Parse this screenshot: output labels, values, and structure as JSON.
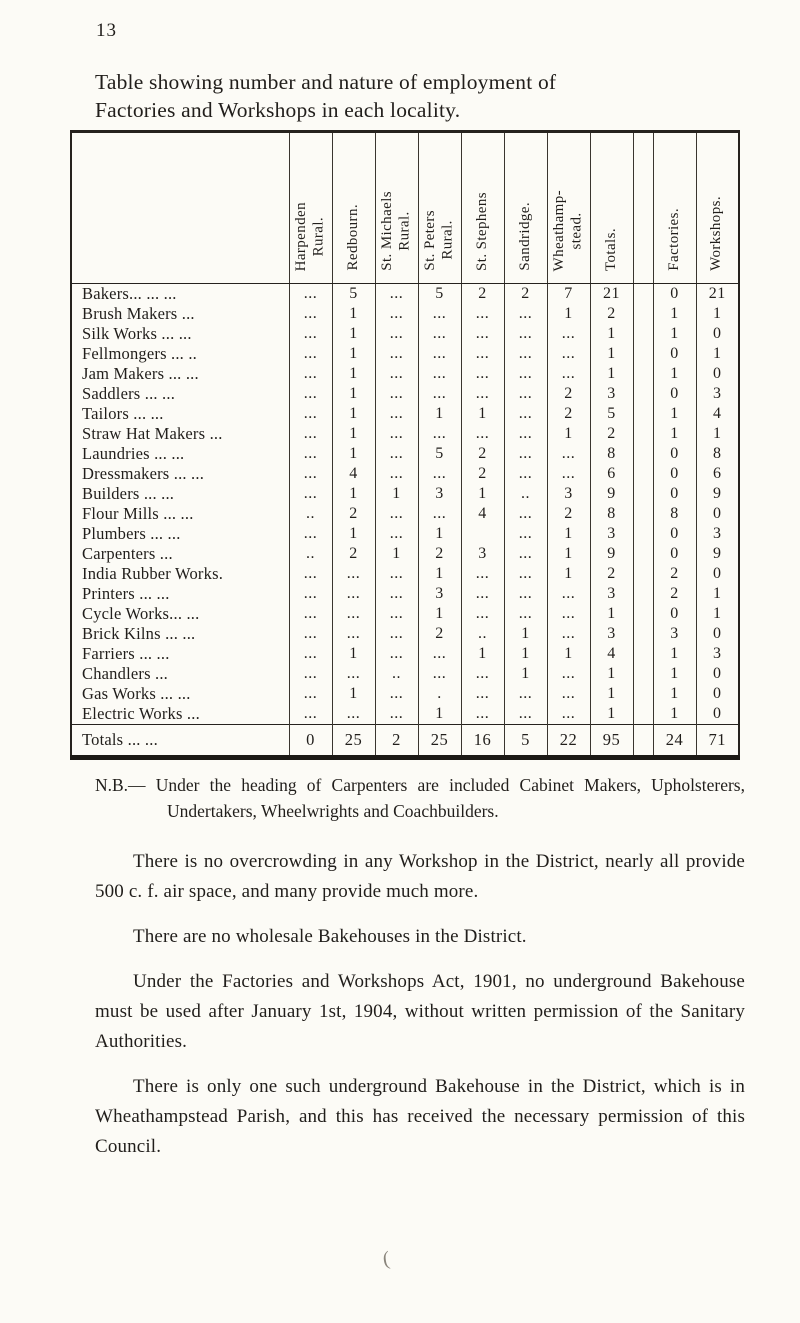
{
  "page": {
    "number": "13",
    "title_line1": "Table showing number and nature of employment of",
    "title_line2": "Factories and Workshops in each locality."
  },
  "colors": {
    "ink": "#211e1b",
    "paper": "#fcfbf6",
    "table_border": "#26221e"
  },
  "table": {
    "locality_columns": [
      "Harpenden\nRural.",
      "Redbourn.",
      "St. Michaels\nRural.",
      "St. Peters\nRural.",
      "St. Stephens",
      "Sandridge.",
      "Wheathamp-\nstead.",
      "Totals."
    ],
    "group_columns": [
      "Factories.",
      "Workshops."
    ],
    "rows": [
      {
        "label": "Bakers... ... ...",
        "cells": [
          "...",
          "5",
          "...",
          "5",
          "2",
          "2",
          "7",
          "21",
          "0",
          "21"
        ]
      },
      {
        "label": "Brush Makers ...",
        "cells": [
          "...",
          "1",
          "...",
          "...",
          "...",
          "...",
          "1",
          "2",
          "1",
          "1"
        ]
      },
      {
        "label": "Silk Works ... ...",
        "cells": [
          "...",
          "1",
          "...",
          "...",
          "...",
          "...",
          "...",
          "1",
          "1",
          "0"
        ]
      },
      {
        "label": "Fellmongers ... ..",
        "cells": [
          "...",
          "1",
          "...",
          "...",
          "...",
          "...",
          "...",
          "1",
          "0",
          "1"
        ]
      },
      {
        "label": "Jam Makers ... ...",
        "cells": [
          "...",
          "1",
          "...",
          "...",
          "...",
          "...",
          "...",
          "1",
          "1",
          "0"
        ]
      },
      {
        "label": "Saddlers ... ...",
        "cells": [
          "...",
          "1",
          "...",
          "...",
          "...",
          "...",
          "2",
          "3",
          "0",
          "3"
        ]
      },
      {
        "label": "Tailors ... ...",
        "cells": [
          "...",
          "1",
          "...",
          "1",
          "1",
          "...",
          "2",
          "5",
          "1",
          "4"
        ]
      },
      {
        "label": "Straw Hat Makers ...",
        "cells": [
          "...",
          "1",
          "...",
          "...",
          "...",
          "...",
          "1",
          "2",
          "1",
          "1"
        ]
      },
      {
        "label": "Laundries ... ...",
        "cells": [
          "...",
          "1",
          "...",
          "5",
          "2",
          "...",
          "...",
          "8",
          "0",
          "8"
        ]
      },
      {
        "label": "Dressmakers ... ...",
        "cells": [
          "...",
          "4",
          "...",
          "...",
          "2",
          "...",
          "...",
          "6",
          "0",
          "6"
        ]
      },
      {
        "label": "Builders ... ...",
        "cells": [
          "...",
          "1",
          "1",
          "3",
          "1",
          "..",
          "3",
          "9",
          "0",
          "9"
        ]
      },
      {
        "label": "Flour Mills ... ...",
        "cells": [
          "..",
          "2",
          "...",
          "...",
          "4",
          "...",
          "2",
          "8",
          "8",
          "0"
        ]
      },
      {
        "label": "Plumbers ... ...",
        "cells": [
          "...",
          "1",
          "...",
          "1",
          "",
          "...",
          "1",
          "3",
          "0",
          "3"
        ]
      },
      {
        "label": "Carpenters ...",
        "cells": [
          "..",
          "2",
          "1",
          "2",
          "3",
          "...",
          "1",
          "9",
          "0",
          "9"
        ]
      },
      {
        "label": "India Rubber Works.",
        "cells": [
          "...",
          "...",
          "...",
          "1",
          "...",
          "...",
          "1",
          "2",
          "2",
          "0"
        ]
      },
      {
        "label": "Printers ... ...",
        "cells": [
          "...",
          "...",
          "...",
          "3",
          "...",
          "...",
          "...",
          "3",
          "2",
          "1"
        ]
      },
      {
        "label": "Cycle Works... ...",
        "cells": [
          "...",
          "...",
          "...",
          "1",
          "...",
          "...",
          "...",
          "1",
          "0",
          "1"
        ]
      },
      {
        "label": "Brick Kilns ... ...",
        "cells": [
          "...",
          "...",
          "...",
          "2",
          "..",
          "1",
          "...",
          "3",
          "3",
          "0"
        ]
      },
      {
        "label": "Farriers ... ...",
        "cells": [
          "...",
          "1",
          "...",
          "...",
          "1",
          "1",
          "1",
          "4",
          "1",
          "3"
        ]
      },
      {
        "label": "Chandlers ...",
        "cells": [
          "...",
          "...",
          "..",
          "...",
          "...",
          "1",
          "...",
          "1",
          "1",
          "0"
        ]
      },
      {
        "label": "Gas Works ... ...",
        "cells": [
          "...",
          "1",
          "...",
          ".",
          "...",
          "...",
          "...",
          "1",
          "1",
          "0"
        ]
      },
      {
        "label": "Electric Works ...",
        "cells": [
          "...",
          "...",
          "...",
          "1",
          "...",
          "...",
          "...",
          "1",
          "1",
          "0"
        ]
      }
    ],
    "totals": {
      "label": "Totals ... ...",
      "cells": [
        "0",
        "25",
        "2",
        "25",
        "16",
        "5",
        "22",
        "95",
        "24",
        "71"
      ]
    }
  },
  "note": "N.B.— Under the heading of Carpenters are included Cabinet Makers, Upholsterers, Undertakers, Wheelwrights and Coachbuilders.",
  "paragraphs": [
    "There is no overcrowding in any Workshop in the District, nearly all provide 500 c. f. air space, and many provide much more.",
    "There are no wholesale Bakehouses in the District.",
    "Under the Factories and Workshops Act, 1901, no underground Bakehouse must be used after January 1st, 1904, without written permission of the Sanitary Authorities.",
    "There is only one such underground Bakehouse in the District, which is in Wheathampstead Parish, and this has received the necessary permission of this Council."
  ],
  "stray_mark": "("
}
